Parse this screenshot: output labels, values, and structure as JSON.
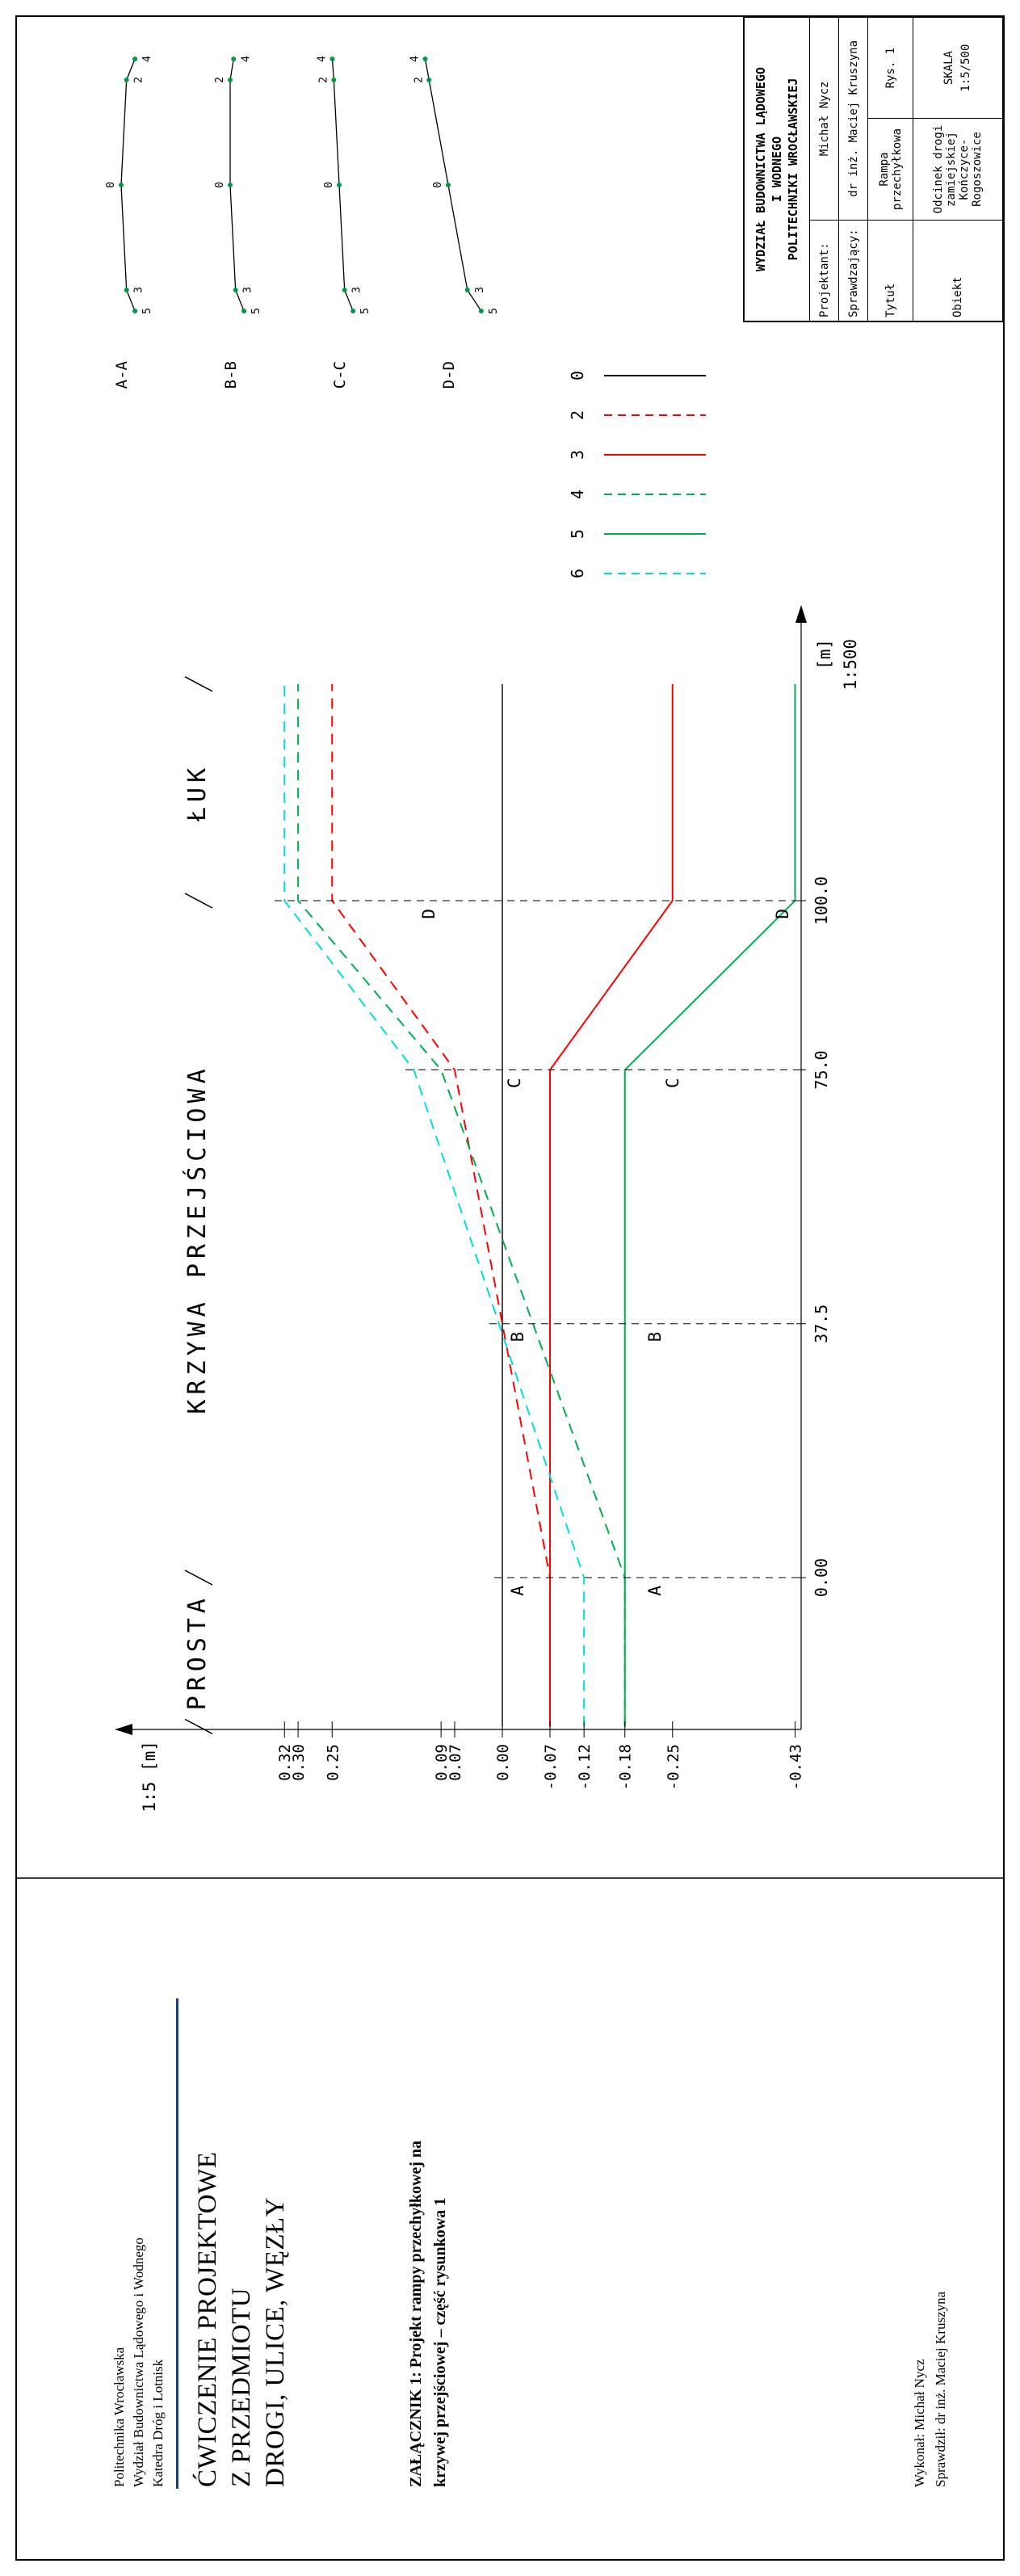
{
  "page": {
    "frame_color": "#000000",
    "background": "#ffffff"
  },
  "footer": {
    "accent_color": "#1a3e6e",
    "institution_lines": [
      "Politechnika Wrocławska",
      "Wydział Budownictwa Lądowego i Wodnego",
      "Katedra Dróg i Lotnisk"
    ],
    "course_title_lines": [
      "ĆWICZENIE PROJEKTOWE",
      "Z PRZEDMIOTU",
      "DROGI, ULICE, WĘZŁY"
    ],
    "attachment_lines": [
      "ZAŁĄCZNIK 1: Projekt rampy przechyłkowej na",
      "krzywej przejściowej – część rysunkowa 1"
    ],
    "made_by": "Wykonał: Michał Nycz",
    "checked_by": "Sprawdził: dr inż. Maciej Kruszyna"
  },
  "title_block": {
    "header_lines": [
      "WYDZIAŁ BUDOWNICTWA LĄDOWEGO",
      "I WODNEGO",
      "POLITECHNIKI WROCŁAWSKIEJ"
    ],
    "projektant_label": "Projektant:",
    "projektant_value": "Michał Nycz",
    "sprawdzajacy_label": "Sprawdzający:",
    "sprawdzajacy_value": "dr inż. Maciej Kruszyna",
    "tytul_label": "Tytuł",
    "tytul_value": "Rampa przechyłkowa",
    "rys_value": "Rys. 1",
    "obiekt_label": "Obiekt",
    "obiekt_value": "Odcinek drogi zamiejskiej Kończyce-Rogoszowice",
    "skala_label": "SKALA",
    "skala_value": "1:5/500"
  },
  "chart_data": {
    "type": "line",
    "ylabel": "1:5 [m]",
    "xlabel": "[m]",
    "x_scale_label": "1:500",
    "x_domain": [
      -22,
      132
    ],
    "ylim": [
      -0.43,
      0.32
    ],
    "grid": false,
    "zones": [
      {
        "label": "PROSTA",
        "from": -22,
        "to": 0
      },
      {
        "label": "KRZYWA PRZEJŚCIOWA",
        "from": 0,
        "to": 100
      },
      {
        "label": "ŁUK",
        "from": 100,
        "to": 132
      }
    ],
    "stations": [
      0,
      37.5,
      75,
      100
    ],
    "station_labels": [
      "0.00",
      "37.5",
      "75.0",
      "100.0"
    ],
    "section_markers": [
      "A",
      "B",
      "C",
      "D"
    ],
    "y_tick_values": [
      0.32,
      0.3,
      0.25,
      0.09,
      0.07,
      0.0,
      -0.07,
      -0.12,
      -0.18,
      -0.25,
      -0.43
    ],
    "y_tick_labels": [
      "0.32",
      "0.30",
      "0.25",
      "0.09",
      "0.07",
      "0.00",
      "-0.07",
      "-0.12",
      "-0.18",
      "-0.25",
      "-0.43"
    ],
    "legend_order": [
      "0",
      "2",
      "3",
      "4",
      "5",
      "6"
    ],
    "series": [
      {
        "name": "0",
        "color": "#000000",
        "dashed": false,
        "points": [
          [
            -22,
            0.0
          ],
          [
            132,
            0.0
          ]
        ]
      },
      {
        "name": "2",
        "color": "#ff0000",
        "dashed": true,
        "points": [
          [
            -22,
            -0.07
          ],
          [
            0,
            -0.07
          ],
          [
            75,
            0.07
          ],
          [
            100,
            0.25
          ],
          [
            132,
            0.25
          ]
        ]
      },
      {
        "name": "3",
        "color": "#ff0000",
        "dashed": false,
        "points": [
          [
            -22,
            -0.07
          ],
          [
            75,
            -0.07
          ],
          [
            100,
            -0.25
          ],
          [
            132,
            -0.25
          ]
        ]
      },
      {
        "name": "4",
        "color": "#00b050",
        "dashed": true,
        "points": [
          [
            -22,
            -0.18
          ],
          [
            0,
            -0.18
          ],
          [
            75,
            0.09
          ],
          [
            100,
            0.3
          ],
          [
            132,
            0.3
          ]
        ]
      },
      {
        "name": "5",
        "color": "#00b050",
        "dashed": false,
        "points": [
          [
            -22,
            -0.18
          ],
          [
            75,
            -0.18
          ],
          [
            100,
            -0.43
          ],
          [
            132,
            -0.43
          ]
        ]
      },
      {
        "name": "6",
        "color": "#00dcdc",
        "dashed": true,
        "points": [
          [
            -22,
            -0.12
          ],
          [
            0,
            -0.12
          ],
          [
            75,
            0.13
          ],
          [
            100,
            0.32
          ],
          [
            132,
            0.32
          ]
        ]
      }
    ],
    "cross_sections": [
      {
        "name": "A-A",
        "points": [
          {
            "n": "5",
            "d": -6,
            "v": -0.18
          },
          {
            "n": "3",
            "d": -5,
            "v": -0.07
          },
          {
            "n": "0",
            "d": 0,
            "v": 0.0
          },
          {
            "n": "2",
            "d": 5,
            "v": -0.07
          },
          {
            "n": "4",
            "d": 6,
            "v": -0.18
          }
        ]
      },
      {
        "name": "B-B",
        "points": [
          {
            "n": "5",
            "d": -6,
            "v": -0.18
          },
          {
            "n": "3",
            "d": -5,
            "v": -0.07
          },
          {
            "n": "0",
            "d": 0,
            "v": 0.0
          },
          {
            "n": "2",
            "d": 5,
            "v": 0.0
          },
          {
            "n": "4",
            "d": 6,
            "v": -0.045
          }
        ]
      },
      {
        "name": "C-C",
        "points": [
          {
            "n": "5",
            "d": -6,
            "v": -0.18
          },
          {
            "n": "3",
            "d": -5,
            "v": -0.07
          },
          {
            "n": "0",
            "d": 0,
            "v": 0.0
          },
          {
            "n": "2",
            "d": 5,
            "v": 0.07
          },
          {
            "n": "4",
            "d": 6,
            "v": 0.09
          }
        ]
      },
      {
        "name": "D-D",
        "points": [
          {
            "n": "5",
            "d": -6,
            "v": -0.43
          },
          {
            "n": "3",
            "d": -5,
            "v": -0.25
          },
          {
            "n": "0",
            "d": 0,
            "v": 0.0
          },
          {
            "n": "2",
            "d": 5,
            "v": 0.25
          },
          {
            "n": "4",
            "d": 6,
            "v": 0.3
          }
        ]
      }
    ]
  }
}
